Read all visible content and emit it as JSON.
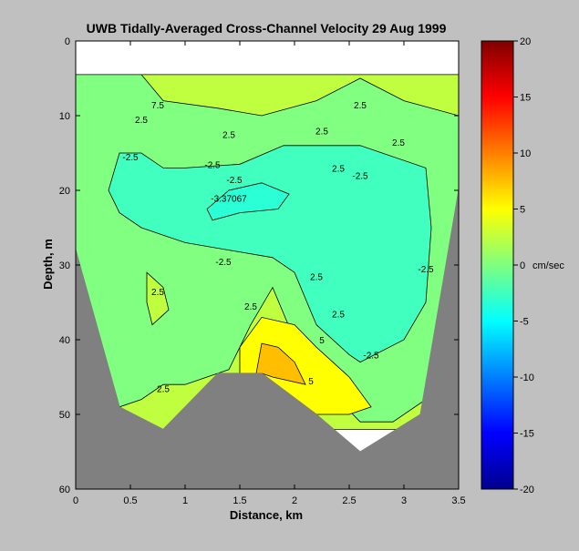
{
  "chart_data": {
    "type": "heatmap",
    "title": "UWB   Tidally-Averaged  Cross-Channel Velocity   29 Aug 1999",
    "xlabel": "Distance, km",
    "ylabel": "Depth, m",
    "xlim": [
      0,
      3.5
    ],
    "ylim": [
      60,
      0
    ],
    "x_ticks": [
      "0",
      "0.5",
      "1",
      "1.5",
      "2",
      "2.5",
      "3",
      "3.5"
    ],
    "y_ticks": [
      "0",
      "10",
      "20",
      "30",
      "40",
      "50",
      "60"
    ],
    "colorbar": {
      "unit_label": "cm/sec",
      "range": [
        -20,
        20
      ],
      "ticks": [
        "20",
        "15",
        "10",
        "5",
        "0",
        "-5",
        "-10",
        "-15",
        "-20"
      ],
      "colormap": "jet"
    },
    "contour_labels": [
      "2.5",
      "2.5",
      "2.5",
      "-2.5",
      "-2.5",
      "-2.5",
      "-3.37067",
      "2.5",
      "-2.5",
      "2.5",
      "2.5",
      "2.5",
      "2.5",
      "-2.5",
      "-2.5",
      "-2.5",
      "2.5",
      "2.5",
      "2.5",
      "5",
      "5",
      "7.5"
    ],
    "seafloor": {
      "x": [
        0,
        0.4,
        0.8,
        1.3,
        1.7,
        2.2,
        2.6,
        3.15,
        3.5
      ],
      "depth": [
        28,
        49,
        52,
        44.5,
        44.5,
        50,
        55,
        50,
        20
      ]
    },
    "regions": [
      {
        "level": 2.5,
        "polygon": [
          [
            0,
            4.5
          ],
          [
            3.5,
            4.5
          ],
          [
            3.5,
            52
          ],
          [
            0,
            52
          ]
        ]
      },
      {
        "level": 0,
        "polygon": [
          [
            0,
            4.5
          ],
          [
            0.6,
            4.5
          ],
          [
            0.8,
            8
          ],
          [
            1.3,
            9
          ],
          [
            1.7,
            10
          ],
          [
            2.2,
            8
          ],
          [
            2.6,
            5
          ],
          [
            3.0,
            8
          ],
          [
            3.5,
            10
          ],
          [
            3.5,
            20
          ],
          [
            3.2,
            48
          ],
          [
            2.9,
            51
          ],
          [
            2.6,
            51
          ],
          [
            2.4,
            48
          ],
          [
            2.0,
            40
          ],
          [
            1.8,
            33
          ],
          [
            1.6,
            38
          ],
          [
            1.4,
            44
          ],
          [
            1.0,
            46
          ],
          [
            0.8,
            46
          ],
          [
            0.6,
            48
          ],
          [
            0.4,
            49
          ],
          [
            0,
            28
          ]
        ]
      },
      {
        "level": -2.5,
        "polygon": [
          [
            0.4,
            15
          ],
          [
            0.6,
            15
          ],
          [
            0.8,
            17
          ],
          [
            1.0,
            17
          ],
          [
            1.5,
            16.5
          ],
          [
            1.9,
            14
          ],
          [
            2.6,
            14
          ],
          [
            3.2,
            17
          ],
          [
            3.25,
            25
          ],
          [
            3.2,
            35
          ],
          [
            3.0,
            40
          ],
          [
            2.6,
            43
          ],
          [
            2.5,
            42
          ],
          [
            2.2,
            38
          ],
          [
            2.0,
            31
          ],
          [
            1.8,
            29
          ],
          [
            1.4,
            28
          ],
          [
            1.0,
            27
          ],
          [
            0.8,
            26
          ],
          [
            0.6,
            25
          ],
          [
            0.4,
            23
          ],
          [
            0.3,
            20
          ]
        ]
      },
      {
        "level": -3.37,
        "polygon": [
          [
            1.2,
            22.5
          ],
          [
            1.4,
            20
          ],
          [
            1.7,
            19
          ],
          [
            1.95,
            20.5
          ],
          [
            1.85,
            22.5
          ],
          [
            1.5,
            23
          ],
          [
            1.25,
            24
          ]
        ]
      },
      {
        "level": 5,
        "polygon": [
          [
            1.5,
            44.5
          ],
          [
            1.5,
            41
          ],
          [
            1.7,
            37
          ],
          [
            2.0,
            38
          ],
          [
            2.2,
            41
          ],
          [
            2.5,
            45
          ],
          [
            2.7,
            49
          ],
          [
            2.5,
            50
          ],
          [
            2.2,
            50
          ],
          [
            1.7,
            44.5
          ]
        ]
      },
      {
        "level": 7.5,
        "polygon": [
          [
            1.65,
            44.5
          ],
          [
            1.7,
            40.5
          ],
          [
            1.85,
            41
          ],
          [
            2.0,
            43
          ],
          [
            2.1,
            46
          ],
          [
            1.8,
            45
          ],
          [
            1.7,
            44.5
          ]
        ]
      },
      {
        "level": 2.5,
        "polygon": [
          [
            0.65,
            31
          ],
          [
            0.8,
            33
          ],
          [
            0.85,
            36
          ],
          [
            0.7,
            38
          ],
          [
            0.65,
            35
          ]
        ]
      }
    ]
  }
}
